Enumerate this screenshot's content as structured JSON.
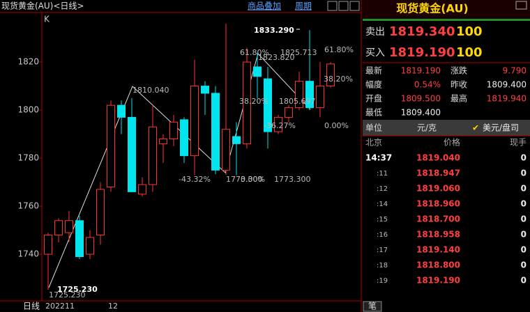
{
  "header": {
    "title": "现货黄金(AU)<日线>",
    "overlay": "商品叠加",
    "period": "周期"
  },
  "chart_label": "K",
  "chart_data": {
    "type": "candlestick",
    "categories": [
      "202211",
      null,
      null,
      null,
      null,
      null,
      "12",
      null,
      null,
      null,
      null,
      null,
      null,
      null,
      null,
      null,
      null,
      null,
      null,
      null,
      null,
      null,
      null,
      null,
      null,
      null,
      null,
      null
    ],
    "open": [
      1740,
      1748,
      1749,
      1754,
      1740,
      1748,
      1768,
      1802,
      1797,
      1765,
      1769,
      1786,
      1788,
      1796,
      1781,
      1810,
      1807,
      1775,
      1789,
      1786,
      1818,
      1813,
      1791,
      1797,
      1801,
      1812,
      1801,
      1810
    ],
    "high": [
      1749,
      1755,
      1758,
      1756,
      1750,
      1770,
      1804,
      1804,
      1805,
      1772,
      1802,
      1790,
      1798,
      1797,
      1821,
      1812,
      1810,
      1836,
      1795,
      1826,
      1823.82,
      1818,
      1798,
      1802,
      1816,
      1833.29,
      1820,
      1820
    ],
    "low": [
      1725.23,
      1745,
      1745,
      1738,
      1738,
      1744,
      1766,
      1790,
      1766,
      1764,
      1766,
      1778,
      1785,
      1778,
      1773,
      1798,
      1773.3,
      1773,
      1773,
      1784,
      1805,
      1784,
      1790,
      1795,
      1800,
      1800,
      1797,
      1809.4
    ],
    "close": [
      1748,
      1754,
      1754,
      1739,
      1747,
      1767,
      1802,
      1797,
      1766,
      1769,
      1793,
      1788,
      1795,
      1781,
      1810,
      1807,
      1775,
      1792,
      1786,
      1820,
      1814,
      1791,
      1797,
      1801,
      1812,
      1801,
      1810,
      1819.19
    ],
    "up_color": "#ff3232",
    "down_color": "#00e5ee",
    "ylim": [
      1720.6,
      1840.6
    ],
    "yticks": [
      1740,
      1760,
      1780,
      1800,
      1820
    ],
    "annotations": [
      "1810.040",
      "61.80%",
      "1823.820",
      "1825.713",
      "1833.290",
      "61.80%",
      "38.20%",
      "38.20%",
      "1805.697",
      "-36.27%",
      "0.00%",
      "-43.32%",
      "1773.300",
      "0.00%",
      "1773.300",
      "1725.230",
      "1725.230"
    ]
  },
  "footer": {
    "period": "日线"
  },
  "quote": {
    "title": "现货黄金(AU)",
    "sell": {
      "label": "卖出",
      "price": "1819.340",
      "volume": "100"
    },
    "buy": {
      "label": "买入",
      "price": "1819.190",
      "volume": "100"
    },
    "stats": [
      [
        "最新",
        "1819.190",
        "涨跌",
        "9.790"
      ],
      [
        "幅度",
        "0.54%",
        "昨收",
        "1809.400"
      ],
      [
        "开盘",
        "1809.500",
        "最高",
        "1819.940"
      ],
      [
        "最低",
        "1809.400"
      ]
    ],
    "unit": {
      "label": "单位",
      "value": "元/克",
      "option": "美元/盘司"
    },
    "ticks_header": [
      "北京",
      "价格",
      "现手"
    ],
    "ticks": [
      [
        "14:37",
        "1819.040",
        "0"
      ],
      [
        ":11",
        "1818.947",
        "0"
      ],
      [
        ":12",
        "1819.060",
        "0"
      ],
      [
        ":14",
        "1818.960",
        "0"
      ],
      [
        ":15",
        "1818.700",
        "0"
      ],
      [
        ":16",
        "1818.958",
        "0"
      ],
      [
        ":17",
        "1819.140",
        "0"
      ],
      [
        ":18",
        "1818.800",
        "0"
      ],
      [
        ":19",
        "1819.190",
        "0"
      ]
    ],
    "tab": "笔"
  }
}
